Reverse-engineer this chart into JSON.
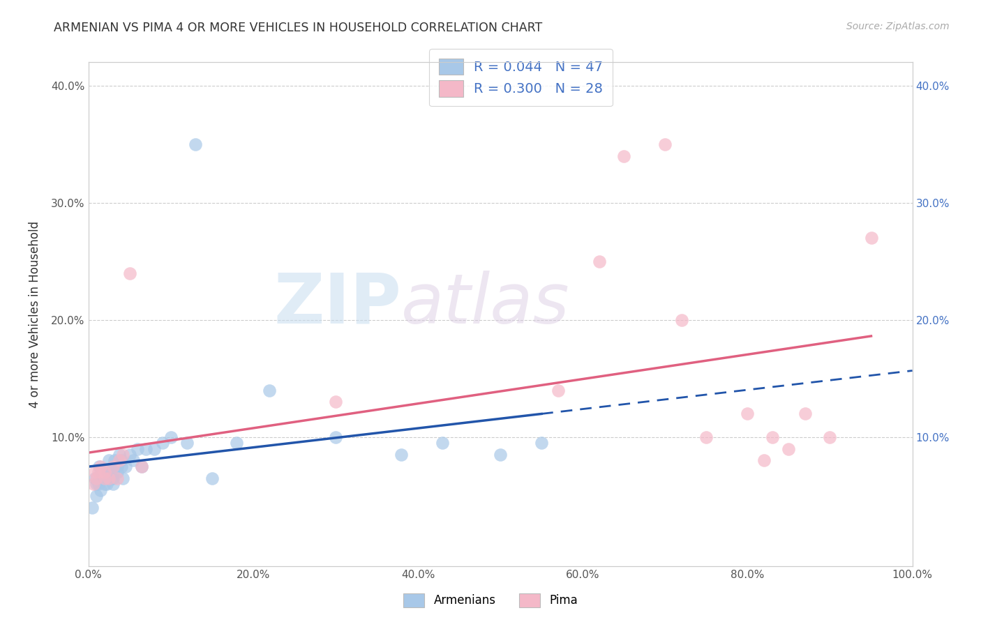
{
  "title": "ARMENIAN VS PIMA 4 OR MORE VEHICLES IN HOUSEHOLD CORRELATION CHART",
  "source": "Source: ZipAtlas.com",
  "ylabel": "4 or more Vehicles in Household",
  "xlabel": "",
  "xlim": [
    0,
    1.0
  ],
  "ylim": [
    -0.01,
    0.42
  ],
  "xticks": [
    0.0,
    0.2,
    0.4,
    0.6,
    0.8,
    1.0
  ],
  "xticklabels": [
    "0.0%",
    "20.0%",
    "40.0%",
    "60.0%",
    "80.0%",
    "100.0%"
  ],
  "yticks": [
    0.1,
    0.2,
    0.3,
    0.4
  ],
  "yticklabels": [
    "10.0%",
    "20.0%",
    "30.0%",
    "40.0%"
  ],
  "armenian_color": "#a8c8e8",
  "pima_color": "#f4b8c8",
  "armenian_line_color": "#2255aa",
  "pima_line_color": "#e06080",
  "legend_r_armenian": "R = 0.044",
  "legend_n_armenian": "N = 47",
  "legend_r_pima": "R = 0.300",
  "legend_n_pima": "N = 28",
  "watermark_zip": "ZIP",
  "watermark_atlas": "atlas",
  "armenian_x": [
    0.005,
    0.008,
    0.01,
    0.01,
    0.012,
    0.013,
    0.015,
    0.015,
    0.018,
    0.02,
    0.02,
    0.022,
    0.022,
    0.025,
    0.025,
    0.025,
    0.028,
    0.03,
    0.03,
    0.03,
    0.03,
    0.032,
    0.035,
    0.035,
    0.038,
    0.04,
    0.04,
    0.042,
    0.045,
    0.05,
    0.055,
    0.06,
    0.065,
    0.07,
    0.08,
    0.09,
    0.1,
    0.12,
    0.13,
    0.15,
    0.18,
    0.22,
    0.3,
    0.38,
    0.43,
    0.5,
    0.55
  ],
  "armenian_y": [
    0.04,
    0.065,
    0.05,
    0.06,
    0.06,
    0.075,
    0.055,
    0.07,
    0.065,
    0.06,
    0.07,
    0.06,
    0.07,
    0.065,
    0.07,
    0.08,
    0.065,
    0.06,
    0.065,
    0.07,
    0.075,
    0.08,
    0.07,
    0.075,
    0.085,
    0.075,
    0.08,
    0.065,
    0.075,
    0.085,
    0.08,
    0.09,
    0.075,
    0.09,
    0.09,
    0.095,
    0.1,
    0.095,
    0.35,
    0.065,
    0.095,
    0.14,
    0.1,
    0.085,
    0.095,
    0.085,
    0.095
  ],
  "pima_x": [
    0.006,
    0.008,
    0.01,
    0.012,
    0.015,
    0.02,
    0.02,
    0.025,
    0.03,
    0.035,
    0.038,
    0.042,
    0.05,
    0.065,
    0.3,
    0.57,
    0.62,
    0.65,
    0.7,
    0.72,
    0.75,
    0.8,
    0.82,
    0.83,
    0.85,
    0.87,
    0.9,
    0.95
  ],
  "pima_y": [
    0.06,
    0.07,
    0.065,
    0.07,
    0.075,
    0.065,
    0.07,
    0.065,
    0.075,
    0.065,
    0.08,
    0.085,
    0.24,
    0.075,
    0.13,
    0.14,
    0.25,
    0.34,
    0.35,
    0.2,
    0.1,
    0.12,
    0.08,
    0.1,
    0.09,
    0.12,
    0.1,
    0.27
  ]
}
